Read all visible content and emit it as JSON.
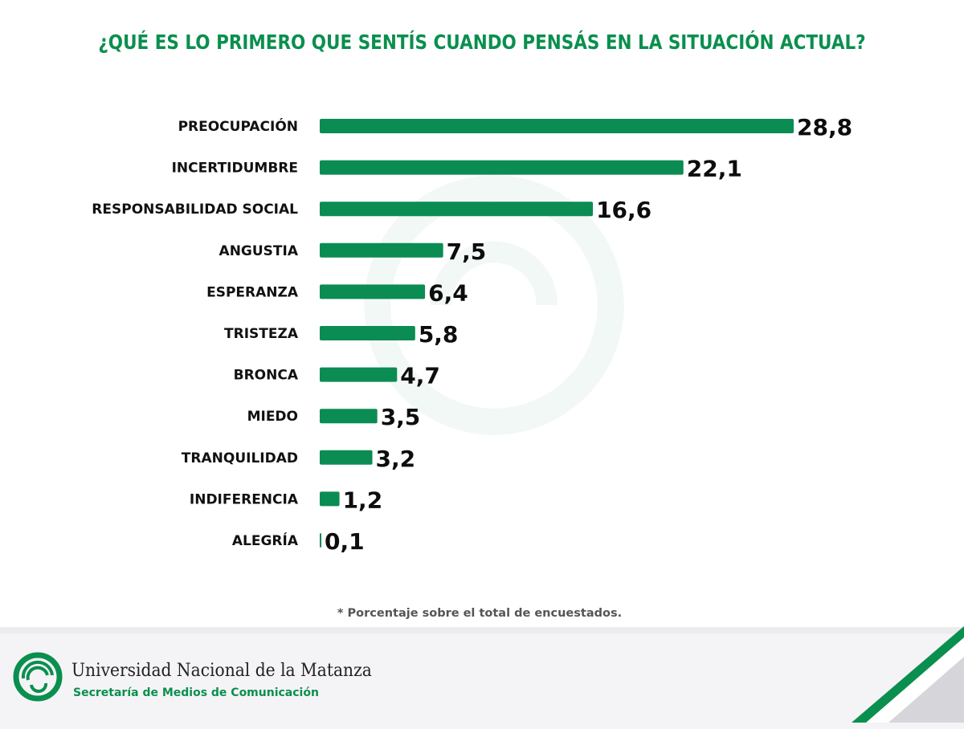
{
  "header": {
    "title": "¿QUÉ ES LO PRIMERO QUE SENTÍS CUANDO PENSÁS EN LA SITUACIÓN ACTUAL?"
  },
  "colors": {
    "accent": "#0a8f4e",
    "bar": "#0b8c52",
    "label": "#111111"
  },
  "chart_data": {
    "type": "bar",
    "orientation": "horizontal",
    "title": "¿QUÉ ES LO PRIMERO QUE SENTÍS CUANDO PENSÁS EN LA SITUACIÓN ACTUAL?",
    "xlabel": "",
    "ylabel": "",
    "unit": "%",
    "categories": [
      "PREOCUPACIÓN",
      "INCERTIDUMBRE",
      "RESPONSABILIDAD SOCIAL",
      "ANGUSTIA",
      "ESPERANZA",
      "TRISTEZA",
      "BRONCA",
      "MIEDO",
      "TRANQUILIDAD",
      "INDIFERENCIA",
      "ALEGRÍA"
    ],
    "values": [
      28.8,
      22.1,
      16.6,
      7.5,
      6.4,
      5.8,
      4.7,
      3.5,
      3.2,
      1.2,
      0.1
    ],
    "value_labels": [
      "28,8",
      "22,1",
      "16,6",
      "7,5",
      "6,4",
      "5,8",
      "4,7",
      "3,5",
      "3,2",
      "1,2",
      "0,1"
    ],
    "xlim": [
      0,
      28.8
    ],
    "grid": false,
    "legend": "none",
    "annotation": "* Porcentaje sobre el total de encuestados."
  },
  "footnote": "* Porcentaje sobre el total de encuestados.",
  "footer": {
    "university": "Universidad Nacional de la Matanza",
    "department": "Secretaría de Medios de Comunicación"
  }
}
